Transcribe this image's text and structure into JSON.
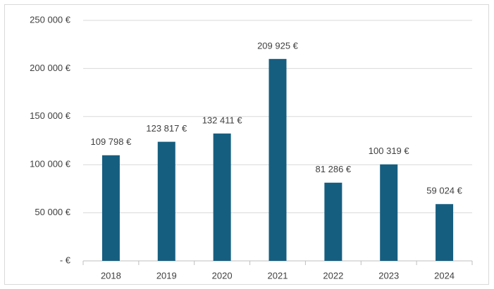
{
  "chart_data": {
    "type": "bar",
    "categories": [
      "2018",
      "2019",
      "2020",
      "2021",
      "2022",
      "2023",
      "2024"
    ],
    "values": [
      109798,
      123817,
      132411,
      209925,
      81286,
      100319,
      59024
    ],
    "value_labels": [
      "109 798 €",
      "123 817 €",
      "132 411 €",
      "209 925 €",
      "81 286 €",
      "100 319 €",
      "59 024 €"
    ],
    "color": "#165e80",
    "ylim": [
      0,
      250000
    ],
    "yticks": [
      {
        "value": 0,
        "label": "-   €"
      },
      {
        "value": 50000,
        "label": "50 000 €"
      },
      {
        "value": 100000,
        "label": "100 000 €"
      },
      {
        "value": 150000,
        "label": "150 000 €"
      },
      {
        "value": 200000,
        "label": "200 000 €"
      },
      {
        "value": 250000,
        "label": "250 000 €"
      }
    ],
    "grid": true
  }
}
